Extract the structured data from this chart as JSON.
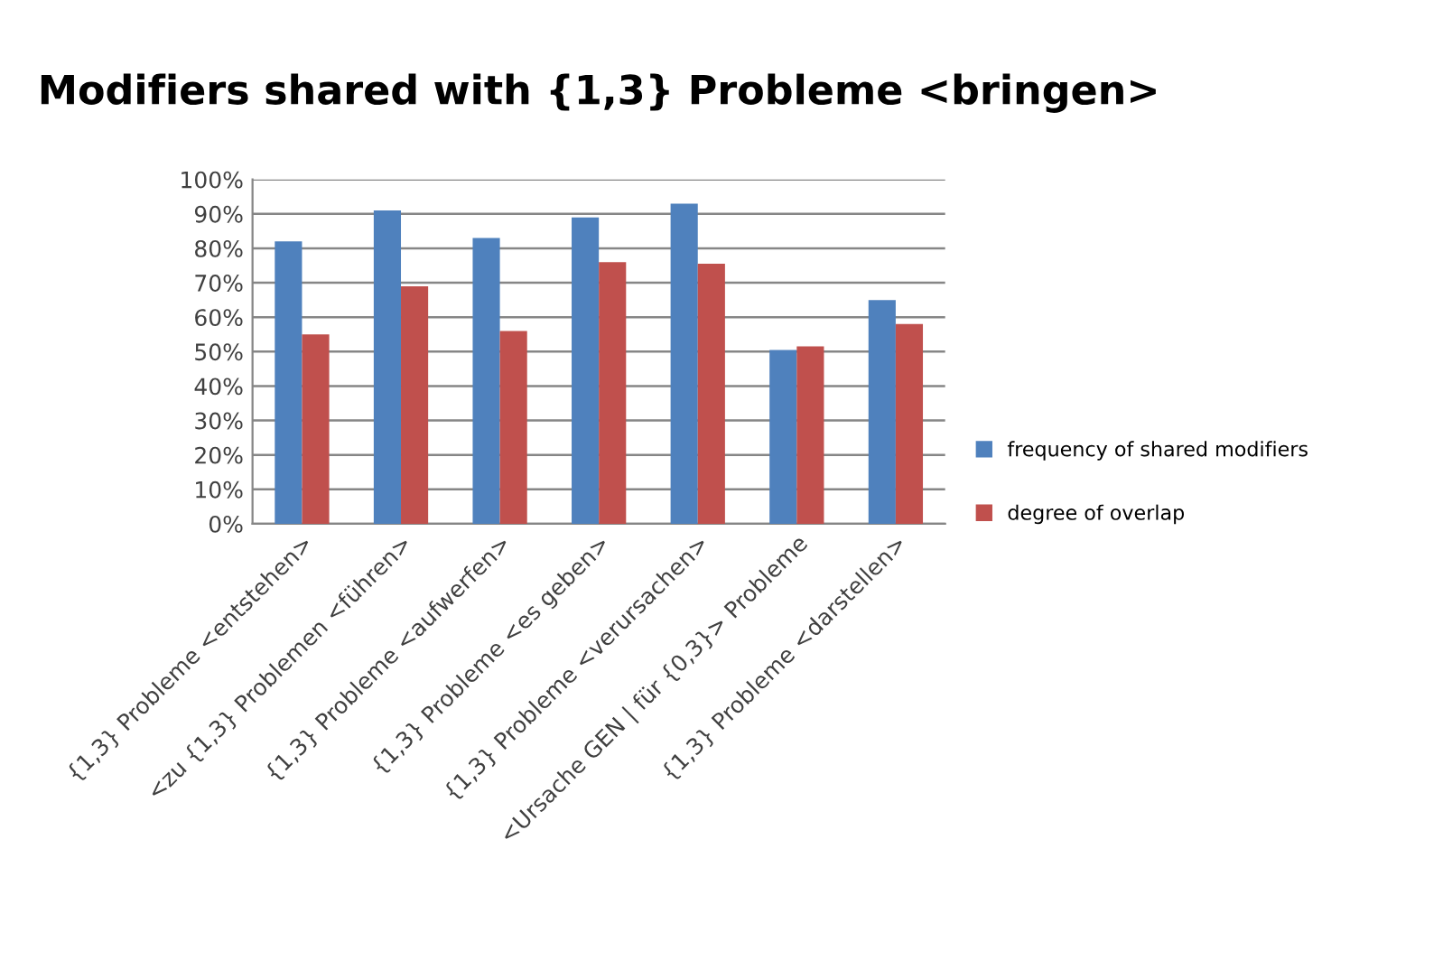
{
  "chart_data": {
    "type": "bar",
    "title": "Modifiers shared with {1,3} Probleme <bringen>",
    "categories": [
      "{1,3} Probleme <entstehen>",
      "<zu {1,3} Problemen <führen>",
      "{1,3} Probleme <aufwerfen>",
      "{1,3} Probleme <es geben>",
      "{1,3} Probleme <verursachen>",
      "<Ursache GEN | für {0,3}> Probleme",
      "{1,3} Probleme <darstellen>"
    ],
    "series": [
      {
        "name": "frequency of shared modifiers",
        "color": "#4f81bd",
        "values": [
          82,
          91,
          83,
          89,
          93,
          50.5,
          65
        ]
      },
      {
        "name": "degree of overlap",
        "color": "#c0504d",
        "values": [
          55,
          69,
          56,
          76,
          75.5,
          51.5,
          58
        ]
      }
    ],
    "ylim": [
      0,
      100
    ],
    "yticks": [
      {
        "value": 0,
        "label": "0%"
      },
      {
        "value": 10,
        "label": "10%"
      },
      {
        "value": 20,
        "label": "20%"
      },
      {
        "value": 30,
        "label": "30%"
      },
      {
        "value": 40,
        "label": "40%"
      },
      {
        "value": 50,
        "label": "50%"
      },
      {
        "value": 60,
        "label": "60%"
      },
      {
        "value": 70,
        "label": "70%"
      },
      {
        "value": 80,
        "label": "80%"
      },
      {
        "value": 90,
        "label": "90%"
      },
      {
        "value": 100,
        "label": "100%"
      }
    ],
    "grid": "y",
    "legend": "right"
  }
}
